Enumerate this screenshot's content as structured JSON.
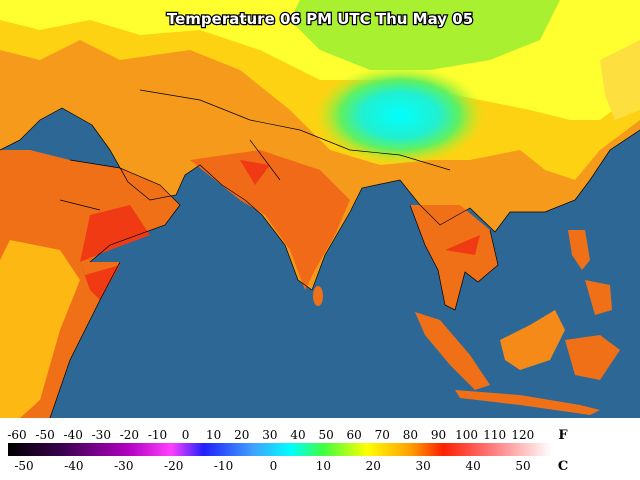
{
  "title": "Temperature 06 PM UTC Thu May 05",
  "legend": {
    "fahrenheit": {
      "unit": "F",
      "ticks": [
        "-60",
        "-50",
        "-40",
        "-30",
        "-20",
        "-10",
        "0",
        "10",
        "20",
        "30",
        "40",
        "50",
        "60",
        "70",
        "80",
        "90",
        "100",
        "110",
        "120"
      ]
    },
    "celsius": {
      "unit": "C",
      "ticks": [
        "-50",
        "-40",
        "-30",
        "-20",
        "-10",
        "0",
        "10",
        "20",
        "30",
        "40",
        "50"
      ]
    }
  }
}
